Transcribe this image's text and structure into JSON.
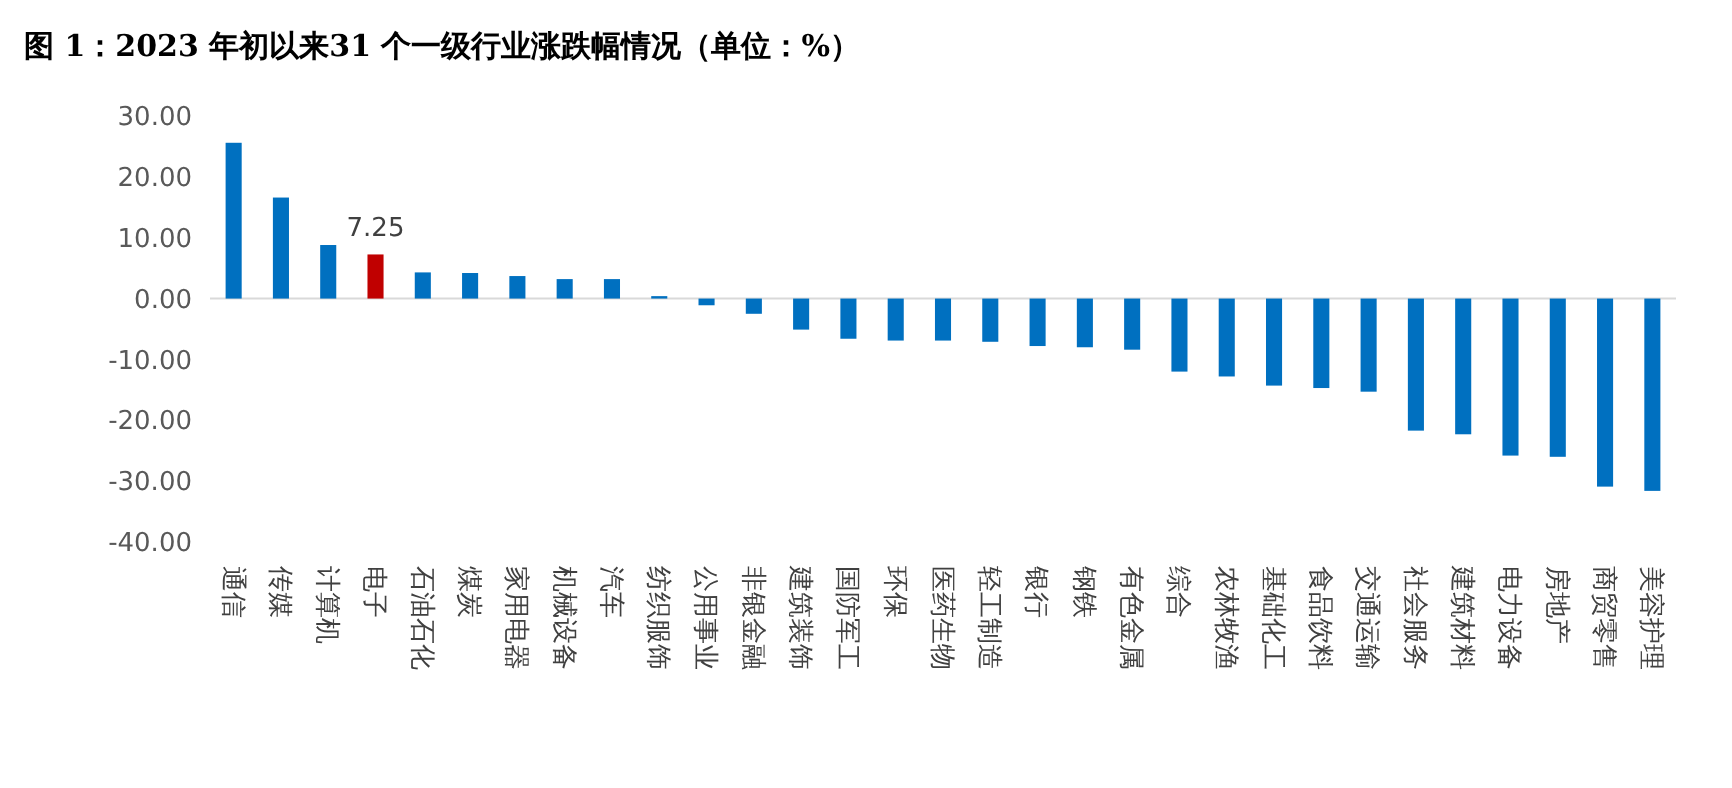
{
  "chart_data": {
    "type": "bar",
    "title": "图 1：2023 年初以来31 个一级行业涨跌幅情况（单位：%）",
    "categories": [
      "通信",
      "传媒",
      "计算机",
      "电子",
      "石油石化",
      "煤炭",
      "家用电器",
      "机械设备",
      "汽车",
      "纺织服饰",
      "公用事业",
      "非银金融",
      "建筑装饰",
      "国防军工",
      "环保",
      "医药生物",
      "轻工制造",
      "银行",
      "钢铁",
      "有色金属",
      "综合",
      "农林牧渔",
      "基础化工",
      "食品饮料",
      "交通运输",
      "社会服务",
      "建筑材料",
      "电力设备",
      "房地产",
      "商贸零售",
      "美容护理"
    ],
    "values": [
      25.6,
      16.6,
      8.8,
      7.25,
      4.3,
      4.2,
      3.7,
      3.2,
      3.2,
      0.4,
      -1.1,
      -2.5,
      -5.1,
      -6.6,
      -6.9,
      -6.9,
      -7.1,
      -7.8,
      -8.0,
      -8.4,
      -12.0,
      -12.8,
      -14.3,
      -14.7,
      -15.3,
      -21.7,
      -22.3,
      -25.8,
      -26.0,
      -30.9,
      -31.6
    ],
    "colors": [
      "#0070c0",
      "#0070c0",
      "#0070c0",
      "#c00000",
      "#0070c0",
      "#0070c0",
      "#0070c0",
      "#0070c0",
      "#0070c0",
      "#0070c0",
      "#0070c0",
      "#0070c0",
      "#0070c0",
      "#0070c0",
      "#0070c0",
      "#0070c0",
      "#0070c0",
      "#0070c0",
      "#0070c0",
      "#0070c0",
      "#0070c0",
      "#0070c0",
      "#0070c0",
      "#0070c0",
      "#0070c0",
      "#0070c0",
      "#0070c0",
      "#0070c0",
      "#0070c0",
      "#0070c0",
      "#0070c0"
    ],
    "value_labels": [
      null,
      null,
      null,
      "7.25",
      null,
      null,
      null,
      null,
      null,
      null,
      null,
      null,
      null,
      null,
      null,
      null,
      null,
      null,
      null,
      null,
      null,
      null,
      null,
      null,
      null,
      null,
      null,
      null,
      null,
      null,
      null
    ],
    "ylim": [
      -40,
      30
    ],
    "yticks": [
      {
        "value": 30,
        "label": "30.00"
      },
      {
        "value": 20,
        "label": "20.00"
      },
      {
        "value": 10,
        "label": "10.00"
      },
      {
        "value": 0,
        "label": "0.00"
      },
      {
        "value": -10,
        "label": "-10.00"
      },
      {
        "value": -20,
        "label": "-20.00"
      },
      {
        "value": -30,
        "label": "-30.00"
      },
      {
        "value": -40,
        "label": "-40.00"
      }
    ]
  }
}
